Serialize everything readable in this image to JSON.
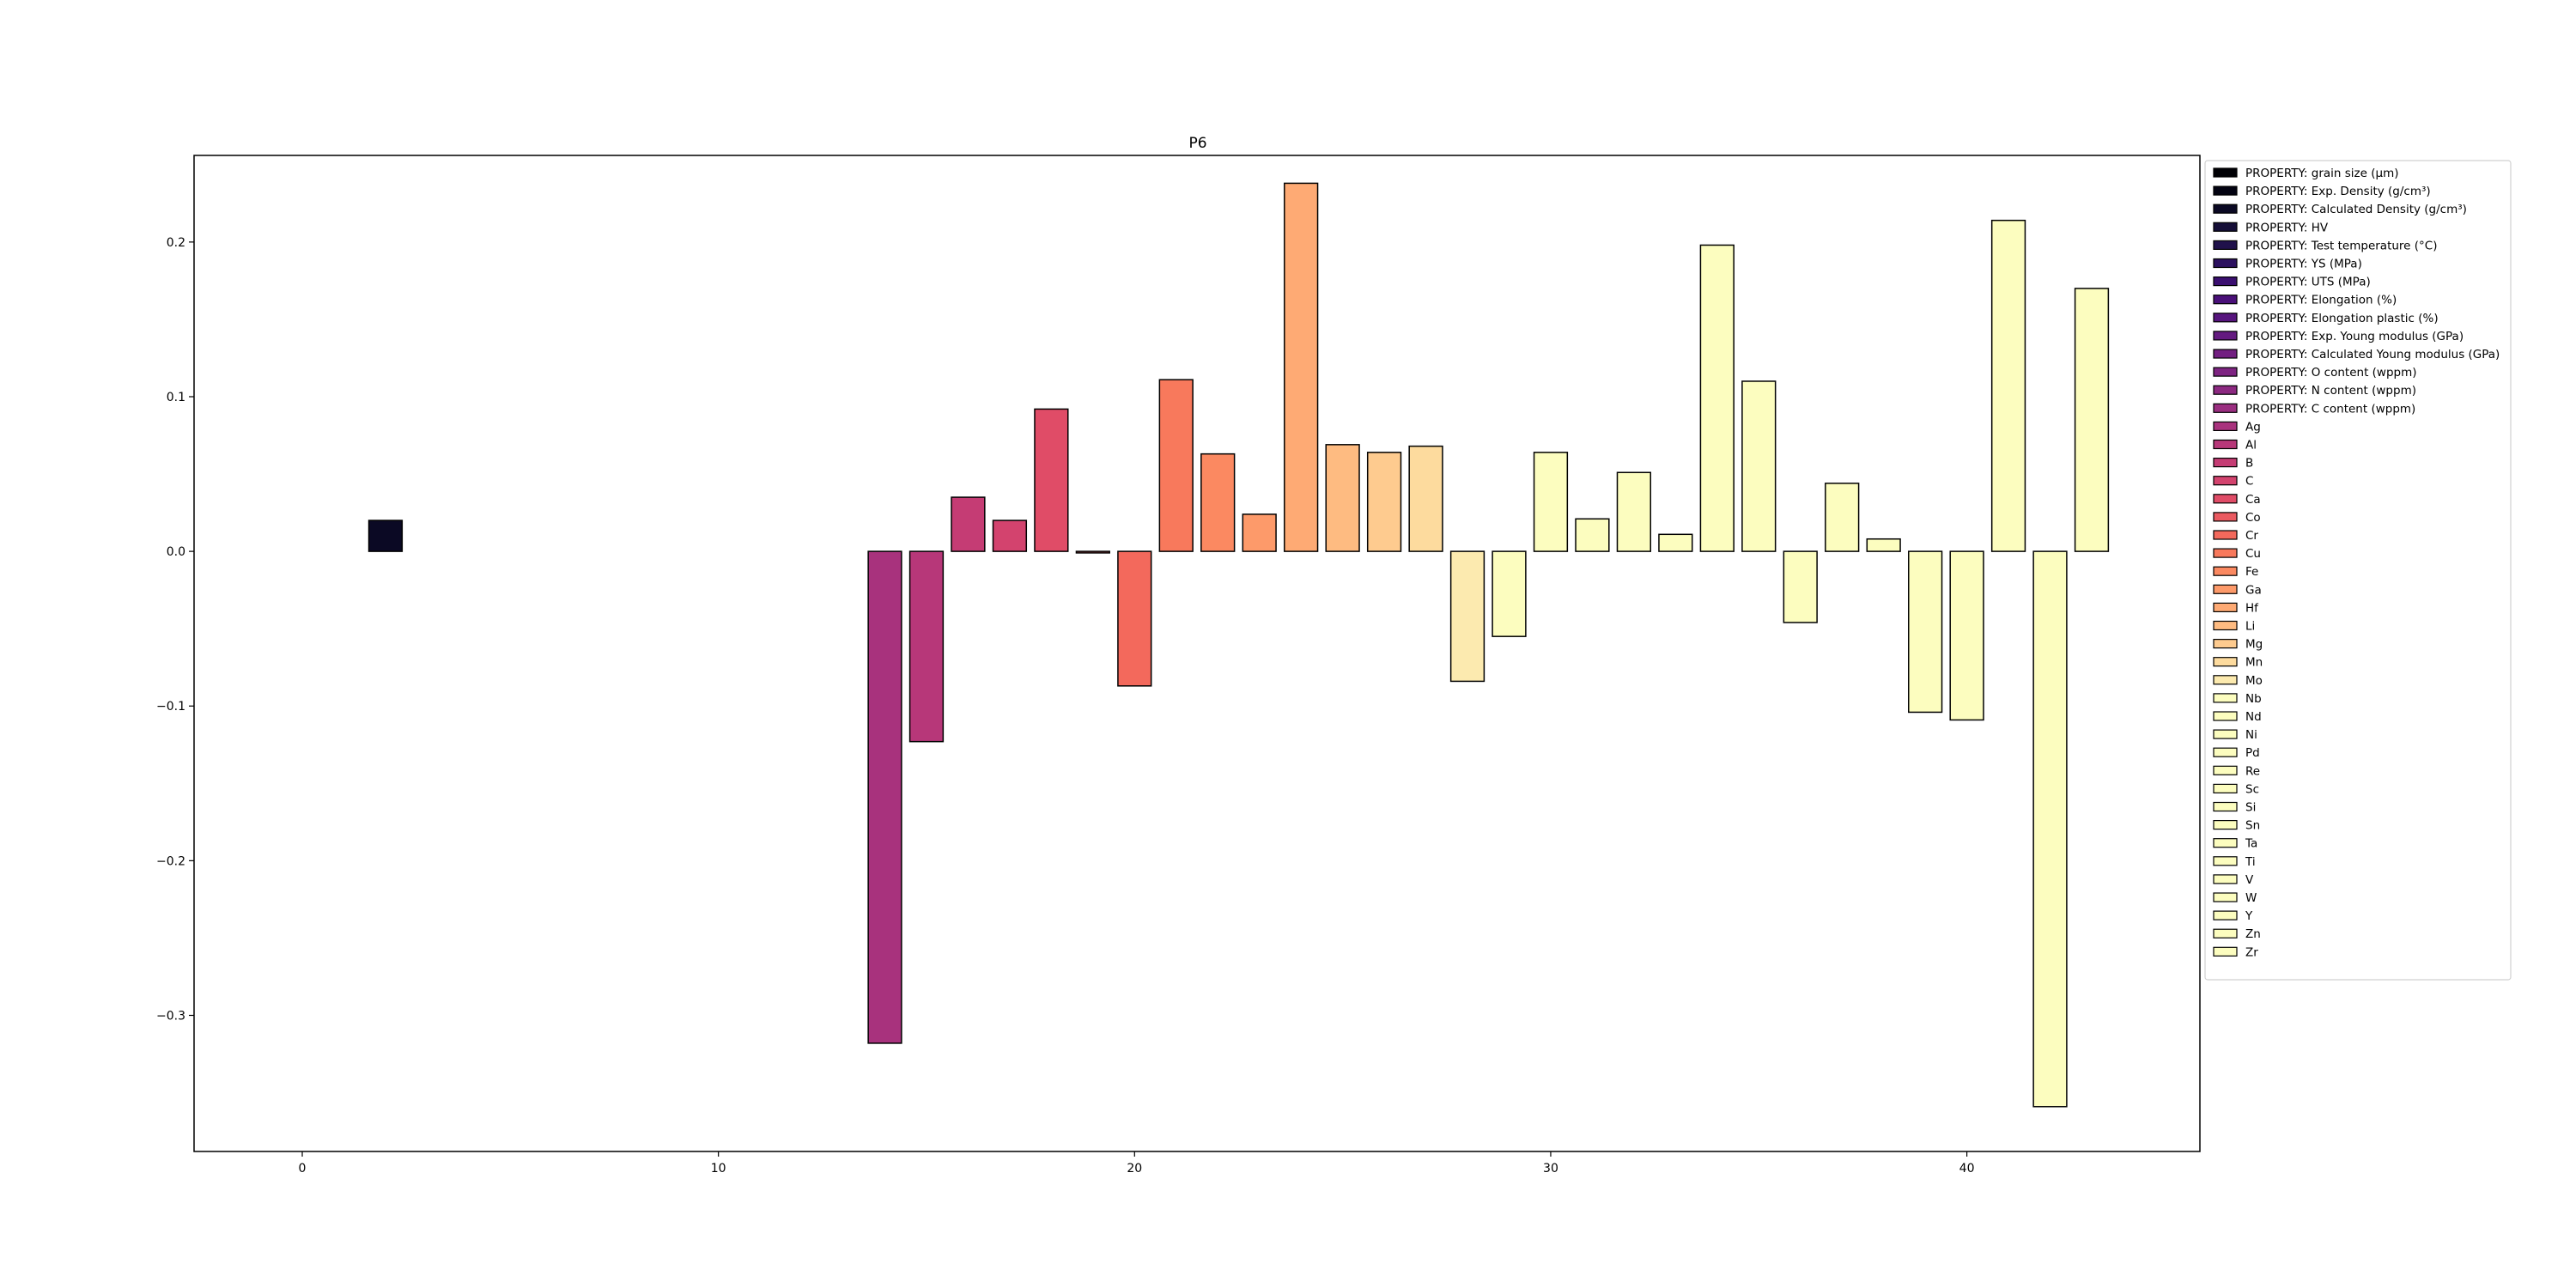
{
  "chart_data": {
    "type": "bar",
    "title": "P6",
    "xlabel": "",
    "ylabel": "",
    "xlim": [
      -2.6,
      45.6
    ],
    "ylim": [
      -0.388,
      0.256
    ],
    "xticks": [
      0,
      10,
      20,
      30,
      40
    ],
    "yticks": [
      -0.3,
      -0.2,
      -0.1,
      0.0,
      0.1,
      0.2
    ],
    "xtick_labels": [
      "0",
      "10",
      "20",
      "30",
      "40"
    ],
    "ytick_labels": [
      "−0.3",
      "−0.2",
      "−0.1",
      "0.0",
      "0.1",
      "0.2"
    ],
    "grid": false,
    "legend_position": "right, outside plot",
    "colormap": "magma",
    "categories": [
      "PROPERTY: grain size (μm)",
      "PROPERTY: Exp. Density (g/cm³)",
      "PROPERTY: Calculated Density (g/cm³)",
      "PROPERTY: HV",
      "PROPERTY: Test temperature (°C)",
      "PROPERTY: YS (MPa)",
      "PROPERTY: UTS (MPa)",
      "PROPERTY: Elongation (%)",
      "PROPERTY: Elongation plastic (%)",
      "PROPERTY: Exp. Young modulus (GPa)",
      "PROPERTY: Calculated Young modulus (GPa)",
      "PROPERTY: O content (wppm)",
      "PROPERTY: N content (wppm)",
      "PROPERTY: C content (wppm)",
      "Ag",
      "Al",
      "B",
      "C",
      "Ca",
      "Co",
      "Cr",
      "Cu",
      "Fe",
      "Ga",
      "Hf",
      "Li",
      "Mg",
      "Mn",
      "Mo",
      "Nb",
      "Nd",
      "Ni",
      "Pd",
      "Re",
      "Sc",
      "Si",
      "Sn",
      "Ta",
      "Ti",
      "V",
      "W",
      "Y",
      "Zn",
      "Zr"
    ],
    "values": [
      0.0,
      0.0,
      0.02,
      0.0,
      0.0,
      0.0,
      0.0,
      0.0,
      0.0,
      0.0,
      0.0,
      0.0,
      0.0,
      0.0,
      -0.318,
      -0.123,
      0.035,
      0.02,
      0.092,
      -0.001,
      -0.087,
      0.111,
      0.063,
      0.024,
      0.238,
      0.069,
      0.064,
      0.068,
      -0.084,
      -0.055,
      0.064,
      0.021,
      0.051,
      0.011,
      0.198,
      0.11,
      -0.046,
      0.044,
      0.008,
      -0.104,
      -0.109,
      0.214,
      -0.359,
      0.17
    ],
    "colors": [
      "#000004",
      "#030312",
      "#0b0924",
      "#150e37",
      "#20114b",
      "#2c115f",
      "#3b0f70",
      "#4a1079",
      "#57157e",
      "#641a80",
      "#721f81",
      "#7e2482",
      "#8c2981",
      "#9a2e80",
      "#a8327d",
      "#b73779",
      "#c53c74",
      "#d3436e",
      "#e04c67",
      "#ea5a61",
      "#f3695c",
      "#f8795c",
      "#fb8961",
      "#fd9a6a",
      "#feaa74",
      "#febb81",
      "#fecb8f",
      "#fddb9e",
      "#fceaaf",
      "#fcfdbf",
      "#fcfdbf",
      "#fcfdbf",
      "#fcfdbf",
      "#fcfdbf",
      "#fcfdbf",
      "#fcfdbf",
      "#fcfdbf",
      "#fcfdbf",
      "#fcfdbf",
      "#fcfdbf",
      "#fcfdbf",
      "#fcfdbf",
      "#fcfdbf",
      "#fcfdbf"
    ]
  }
}
